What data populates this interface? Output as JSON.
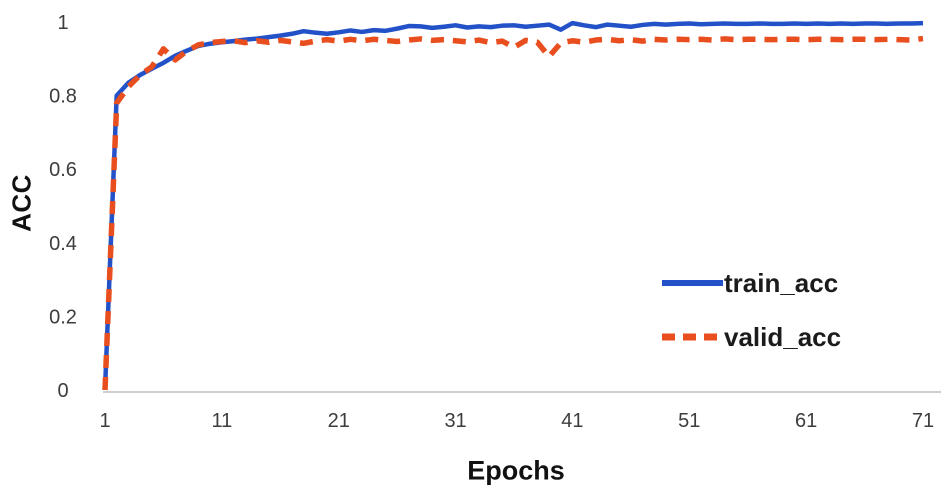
{
  "chart_data": {
    "type": "line",
    "title": "",
    "xlabel": "Epochs",
    "ylabel": "ACC",
    "xlim": [
      1,
      71
    ],
    "ylim": [
      0,
      1
    ],
    "grid": false,
    "background": "#ffffff",
    "axis_line_color": "#bfbfbf",
    "tick_color": "#3d3d3d",
    "x_ticks": [
      1,
      11,
      21,
      31,
      41,
      51,
      61,
      71
    ],
    "y_ticks": {
      "values": [
        0,
        0.2,
        0.4,
        0.6,
        0.8,
        1
      ],
      "labels": [
        "0",
        "0.2",
        "0.4",
        "0.6",
        "0.8",
        "1"
      ]
    },
    "legend_position": "middle-right",
    "x_start": 1,
    "x_step": 1,
    "series": [
      {
        "name": "train_acc",
        "color": "#2351c8",
        "style": "solid",
        "stroke_width": 4.5,
        "values": [
          0,
          0.8,
          0.835,
          0.856,
          0.873,
          0.889,
          0.908,
          0.922,
          0.935,
          0.941,
          0.945,
          0.948,
          0.952,
          0.955,
          0.959,
          0.963,
          0.968,
          0.975,
          0.971,
          0.968,
          0.972,
          0.977,
          0.973,
          0.978,
          0.976,
          0.982,
          0.989,
          0.988,
          0.984,
          0.987,
          0.991,
          0.985,
          0.988,
          0.986,
          0.99,
          0.991,
          0.987,
          0.99,
          0.993,
          0.979,
          0.997,
          0.991,
          0.986,
          0.993,
          0.99,
          0.987,
          0.992,
          0.995,
          0.993,
          0.995,
          0.996,
          0.994,
          0.995,
          0.996,
          0.995,
          0.995,
          0.996,
          0.995,
          0.995,
          0.996,
          0.995,
          0.996,
          0.995,
          0.996,
          0.995,
          0.996,
          0.996,
          0.995,
          0.996,
          0.996,
          0.997
        ]
      },
      {
        "name": "valid_acc",
        "color": "#e84e1e",
        "style": "dashed",
        "stroke_width": 5.5,
        "values": [
          0,
          0.78,
          0.824,
          0.856,
          0.878,
          0.927,
          0.897,
          0.921,
          0.938,
          0.944,
          0.947,
          0.949,
          0.944,
          0.949,
          0.945,
          0.95,
          0.946,
          0.942,
          0.948,
          0.952,
          0.948,
          0.953,
          0.949,
          0.953,
          0.95,
          0.947,
          0.951,
          0.954,
          0.95,
          0.952,
          0.949,
          0.946,
          0.951,
          0.944,
          0.948,
          0.931,
          0.95,
          0.945,
          0.906,
          0.943,
          0.949,
          0.945,
          0.951,
          0.953,
          0.949,
          0.952,
          0.948,
          0.953,
          0.951,
          0.953,
          0.952,
          0.953,
          0.951,
          0.954,
          0.952,
          0.953,
          0.953,
          0.952,
          0.953,
          0.953,
          0.952,
          0.953,
          0.953,
          0.952,
          0.953,
          0.953,
          0.952,
          0.953,
          0.952,
          0.951,
          0.955
        ]
      }
    ]
  }
}
